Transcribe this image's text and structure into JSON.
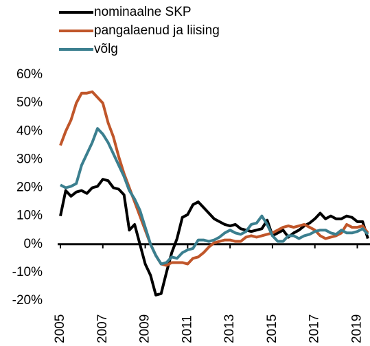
{
  "chart_data": {
    "type": "line",
    "x": [
      2005,
      2005.25,
      2005.5,
      2005.75,
      2006,
      2006.25,
      2006.5,
      2006.75,
      2007,
      2007.25,
      2007.5,
      2007.75,
      2008,
      2008.25,
      2008.5,
      2008.75,
      2009,
      2009.25,
      2009.5,
      2009.75,
      2010,
      2010.25,
      2010.5,
      2010.75,
      2011,
      2011.25,
      2011.5,
      2011.75,
      2012,
      2012.25,
      2012.5,
      2012.75,
      2013,
      2013.25,
      2013.5,
      2013.75,
      2014,
      2014.25,
      2014.5,
      2014.75,
      2015,
      2015.25,
      2015.5,
      2015.75,
      2016,
      2016.25,
      2016.5,
      2016.75,
      2017,
      2017.25,
      2017.5,
      2017.75,
      2018,
      2018.25,
      2018.5,
      2018.75,
      2019,
      2019.25,
      2019.5
    ],
    "series": [
      {
        "name": "nominaalne SKP",
        "color": "#000000",
        "values": [
          10,
          19,
          17,
          18.5,
          19,
          18,
          20,
          20.5,
          23,
          22.5,
          20,
          19.5,
          17.5,
          5,
          7,
          0,
          -7,
          -11,
          -18,
          -17.5,
          -10,
          -3,
          2,
          9.5,
          10.5,
          14,
          15,
          13,
          11,
          9,
          8,
          7,
          6.5,
          7,
          5.5,
          5,
          4.5,
          5,
          5.5,
          8.5,
          3,
          4,
          5,
          2.5,
          4,
          5,
          6.5,
          7.5,
          9,
          11,
          9,
          10,
          9,
          9,
          10,
          9.5,
          8,
          8,
          2
        ]
      },
      {
        "name": "pangalaenud ja liising",
        "color": "#c0562a",
        "values": [
          35,
          40,
          44,
          50,
          53.5,
          53.5,
          54,
          52,
          50,
          43,
          38,
          31,
          25,
          20,
          15,
          10,
          5,
          0,
          -4,
          -7,
          -7.5,
          -6.5,
          -6.5,
          -6.5,
          -7,
          -5,
          -4.5,
          -3,
          -1,
          0.5,
          1,
          1.5,
          1.5,
          1,
          1,
          2.5,
          3,
          2.5,
          3,
          3.5,
          4,
          5,
          6,
          6.5,
          6,
          6.5,
          7,
          6,
          5,
          3,
          2,
          2.5,
          3,
          4,
          7,
          6,
          6,
          6.5,
          4
        ]
      },
      {
        "name": "võlg",
        "color": "#3b7f8f",
        "values": [
          21,
          20,
          20.5,
          21.5,
          28,
          32,
          36,
          41,
          39,
          36,
          32,
          28,
          24,
          19,
          16,
          12,
          6,
          0,
          -4,
          -7,
          -6.5,
          -4.5,
          -5,
          -3,
          -2,
          -1.5,
          1.5,
          1.5,
          1,
          1.5,
          2.5,
          4,
          5,
          4,
          3.5,
          4.5,
          7,
          7.5,
          10,
          7,
          3,
          1,
          1,
          3,
          3,
          2,
          3,
          3.5,
          4.5,
          5,
          5,
          4,
          3.5,
          5,
          4,
          4,
          4.5,
          5.5,
          3.5
        ]
      }
    ],
    "xlim": [
      2005,
      2019.55
    ],
    "xticks": [
      2005,
      2007,
      2009,
      2011,
      2013,
      2015,
      2017,
      2019
    ],
    "ylim": [
      -20,
      60
    ],
    "yticks": [
      {
        "value": -20,
        "label": "-20%"
      },
      {
        "value": -10,
        "label": "-10%"
      },
      {
        "value": 0,
        "label": "0%"
      },
      {
        "value": 10,
        "label": "10%"
      },
      {
        "value": 20,
        "label": "20%"
      },
      {
        "value": 30,
        "label": "30%"
      },
      {
        "value": 40,
        "label": "40%"
      },
      {
        "value": 50,
        "label": "50%"
      },
      {
        "value": 60,
        "label": "60%"
      }
    ]
  }
}
